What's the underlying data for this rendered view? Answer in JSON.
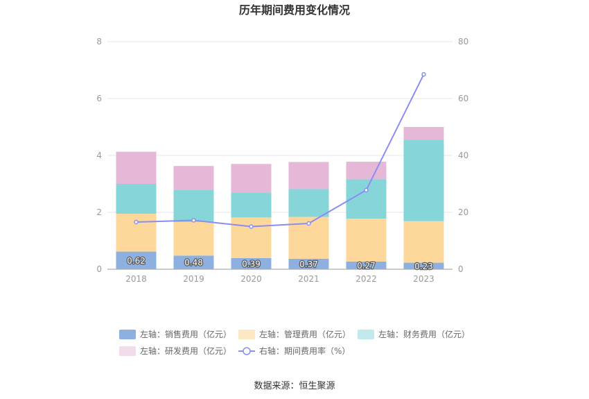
{
  "chart_data": {
    "type": "bar",
    "stacked": true,
    "title": "历年期间费用变化情况",
    "categories": [
      "2018",
      "2019",
      "2020",
      "2021",
      "2022",
      "2023"
    ],
    "series": [
      {
        "name": "左轴：销售费用（亿元）",
        "axis": "left",
        "color": "#8eb0e0",
        "legend_color": "#8eb0e0",
        "values": [
          0.62,
          0.48,
          0.39,
          0.37,
          0.27,
          0.23
        ],
        "labels": [
          "0.62",
          "0.48",
          "0.39",
          "0.37",
          "0.27",
          "0.23"
        ]
      },
      {
        "name": "左轴：管理费用（亿元）",
        "axis": "left",
        "color": "#fed89b",
        "legend_color": "#fde8c4",
        "values": [
          1.33,
          1.18,
          1.43,
          1.47,
          1.51,
          1.46
        ]
      },
      {
        "name": "左轴：财务费用（亿元）",
        "axis": "left",
        "color": "#86d5d9",
        "legend_color": "#c2eaec",
        "values": [
          1.05,
          1.13,
          0.88,
          0.98,
          1.38,
          2.86
        ]
      },
      {
        "name": "左轴：研发费用（亿元）",
        "axis": "left",
        "color": "#e6b8d8",
        "legend_color": "#f2dcec",
        "values": [
          1.13,
          0.84,
          1.0,
          0.95,
          0.62,
          0.45
        ]
      }
    ],
    "line_series": {
      "name": "右轴：期间费用率（%）",
      "axis": "right",
      "color": "#8a8ef0",
      "values": [
        16.6,
        17.2,
        15.0,
        16.1,
        27.8,
        68.5
      ]
    },
    "y_left": {
      "min": 0,
      "max": 8,
      "ticks": [
        "0",
        "2",
        "4",
        "6",
        "8"
      ]
    },
    "y_right": {
      "min": 0,
      "max": 80,
      "ticks": [
        "0",
        "20",
        "40",
        "60",
        "80"
      ]
    },
    "grid": true,
    "legend_position": "bottom"
  },
  "source": "数据来源：恒生聚源"
}
